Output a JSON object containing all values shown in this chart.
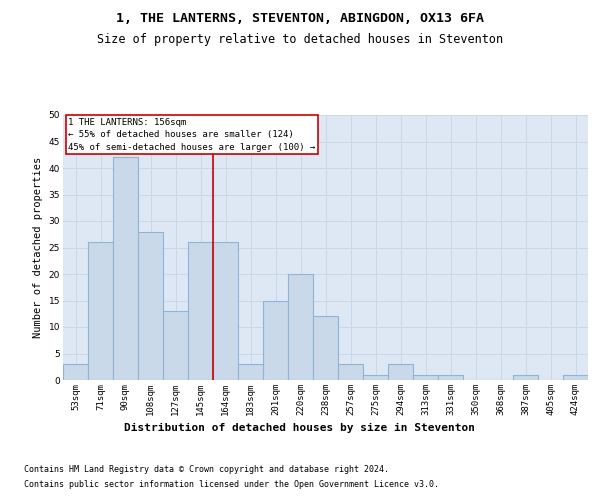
{
  "title1": "1, THE LANTERNS, STEVENTON, ABINGDON, OX13 6FA",
  "title2": "Size of property relative to detached houses in Steventon",
  "xlabel": "Distribution of detached houses by size in Steventon",
  "ylabel": "Number of detached properties",
  "bar_labels": [
    "53sqm",
    "71sqm",
    "90sqm",
    "108sqm",
    "127sqm",
    "145sqm",
    "164sqm",
    "183sqm",
    "201sqm",
    "220sqm",
    "238sqm",
    "257sqm",
    "275sqm",
    "294sqm",
    "313sqm",
    "331sqm",
    "350sqm",
    "368sqm",
    "387sqm",
    "405sqm",
    "424sqm"
  ],
  "bar_values": [
    3,
    26,
    42,
    28,
    13,
    26,
    26,
    3,
    15,
    20,
    12,
    3,
    1,
    3,
    1,
    1,
    0,
    0,
    1,
    0,
    1
  ],
  "bar_color": "#c9d9ea",
  "bar_edgecolor": "#8fb4d4",
  "bar_linewidth": 0.8,
  "grid_color": "#c8d8e8",
  "plot_bg_color": "#dde8f4",
  "vline_x": 5.5,
  "vline_color": "#cc0000",
  "annotation_text": "1 THE LANTERNS: 156sqm\n← 55% of detached houses are smaller (124)\n45% of semi-detached houses are larger (100) →",
  "annotation_box_color": "#ffffff",
  "annotation_edge_color": "#cc0000",
  "footnote1": "Contains HM Land Registry data © Crown copyright and database right 2024.",
  "footnote2": "Contains public sector information licensed under the Open Government Licence v3.0.",
  "ylim": [
    0,
    50
  ],
  "yticks": [
    0,
    5,
    10,
    15,
    20,
    25,
    30,
    35,
    40,
    45,
    50
  ],
  "title1_fontsize": 9.5,
  "title2_fontsize": 8.5,
  "xlabel_fontsize": 8,
  "ylabel_fontsize": 7.5,
  "tick_fontsize": 6.5,
  "annotation_fontsize": 6.5,
  "footnote_fontsize": 6
}
